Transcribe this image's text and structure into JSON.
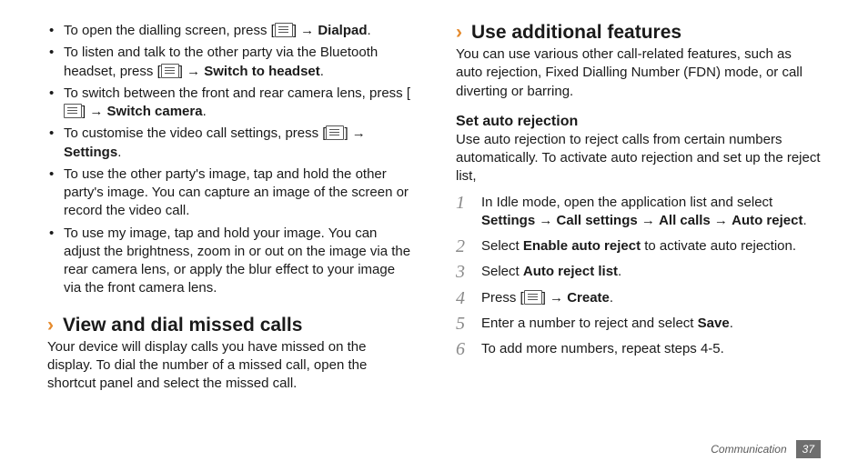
{
  "colors": {
    "text": "#1a1a1a",
    "accent": "#e58a2c",
    "step_number": "#8a8a8a",
    "footer_text": "#5a5a5a",
    "footer_badge_bg": "#6e6e6e",
    "footer_badge_text": "#ffffff",
    "background": "#ffffff"
  },
  "typography": {
    "body_fontsize_pt": 11,
    "h2_fontsize_pt": 16,
    "h3_fontsize_pt": 12,
    "step_number_fontsize_pt": 15,
    "footer_fontsize_pt": 9
  },
  "glyphs": {
    "arrow": " → ",
    "bracket_open": "[",
    "bracket_close": "]",
    "chevron": "›"
  },
  "left": {
    "bullets": [
      {
        "pre": "To open the dialling screen, press ",
        "post_icon": "",
        "arrow_then_bold": "Dialpad",
        "tail": "."
      },
      {
        "pre": "To listen and talk to the other party via the Bluetooth headset, press ",
        "post_icon": "",
        "arrow_then_bold": "Switch to headset",
        "tail": "."
      },
      {
        "pre": "To switch between the front and rear camera lens, press ",
        "post_icon": "",
        "arrow_then_bold": "Switch camera",
        "tail": "."
      },
      {
        "pre": "To customise the video call settings, press ",
        "post_icon": "",
        "arrow_then_bold": "Settings",
        "tail": "."
      },
      {
        "plain": "To use the other party's image, tap and hold the other party's image. You can capture an image of the screen or record the video call."
      },
      {
        "plain": "To use my image, tap and hold your image. You can adjust the brightness, zoom in or out on the image via the rear camera lens, or apply the blur effect to your image via the front camera lens."
      }
    ],
    "heading": "View and dial missed calls",
    "para": "Your device will display calls you have missed on the display. To dial the number of a missed call, open the shortcut panel and select the missed call."
  },
  "right": {
    "heading": "Use additional features",
    "intro": "You can use various other call-related features, such as auto rejection, Fixed Dialling Number (FDN) mode, or call diverting or barring.",
    "sub_heading": "Set auto rejection",
    "sub_intro": "Use auto rejection to reject calls from certain numbers automatically. To activate auto rejection and set up the reject list,",
    "steps": {
      "s1_pre": "In Idle mode, open the application list and select ",
      "s1_path": [
        "Settings",
        "Call settings",
        "All calls",
        "Auto reject"
      ],
      "s1_tail": ".",
      "s2_pre": "Select ",
      "s2_bold": "Enable auto reject",
      "s2_tail": " to activate auto rejection.",
      "s3_pre": "Select ",
      "s3_bold": "Auto reject list",
      "s3_tail": ".",
      "s4_pre": "Press ",
      "s4_arrow_bold": "Create",
      "s4_tail": ".",
      "s5_pre": "Enter a number to reject and select ",
      "s5_bold": "Save",
      "s5_tail": ".",
      "s6": "To add more numbers, repeat steps 4-5."
    },
    "step_numbers": [
      "1",
      "2",
      "3",
      "4",
      "5",
      "6"
    ]
  },
  "footer": {
    "section": "Communication",
    "page": "37"
  }
}
